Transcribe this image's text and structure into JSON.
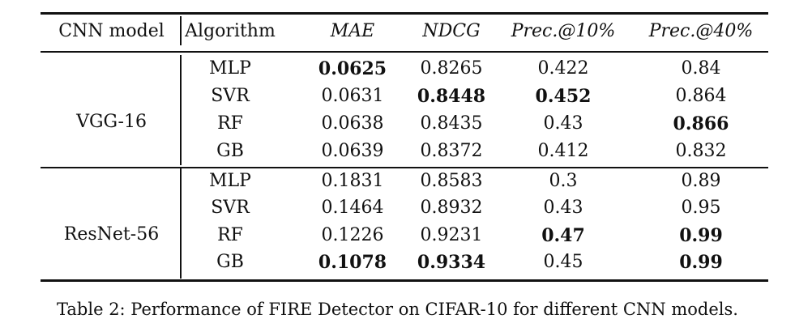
{
  "table": {
    "headers": [
      "CNN model",
      "Algorithm",
      "MAE",
      "NDCG",
      "Prec.@10%",
      "Prec.@40%"
    ],
    "groups": [
      {
        "model": "VGG-16",
        "rows": [
          {
            "algorithm": "MLP",
            "mae": "0.0625",
            "ndcg": "0.8265",
            "p10": "0.422",
            "p40": "0.84"
          },
          {
            "algorithm": "SVR",
            "mae": "0.0631",
            "ndcg": "0.8448",
            "p10": "0.452",
            "p40": "0.864"
          },
          {
            "algorithm": "RF",
            "mae": "0.0638",
            "ndcg": "0.8435",
            "p10": "0.43",
            "p40": "0.866"
          },
          {
            "algorithm": "GB",
            "mae": "0.0639",
            "ndcg": "0.8372",
            "p10": "0.412",
            "p40": "0.832"
          }
        ]
      },
      {
        "model": "ResNet-56",
        "rows": [
          {
            "algorithm": "MLP",
            "mae": "0.1831",
            "ndcg": "0.8583",
            "p10": "0.3",
            "p40": "0.89"
          },
          {
            "algorithm": "SVR",
            "mae": "0.1464",
            "ndcg": "0.8932",
            "p10": "0.43",
            "p40": "0.95"
          },
          {
            "algorithm": "RF",
            "mae": "0.1226",
            "ndcg": "0.9231",
            "p10": "0.47",
            "p40": "0.99"
          },
          {
            "algorithm": "GB",
            "mae": "0.1078",
            "ndcg": "0.9334",
            "p10": "0.45",
            "p40": "0.99"
          }
        ]
      }
    ]
  },
  "caption": "Table 2: Performance of FIRE Detector on CIFAR-10 for different CNN models."
}
